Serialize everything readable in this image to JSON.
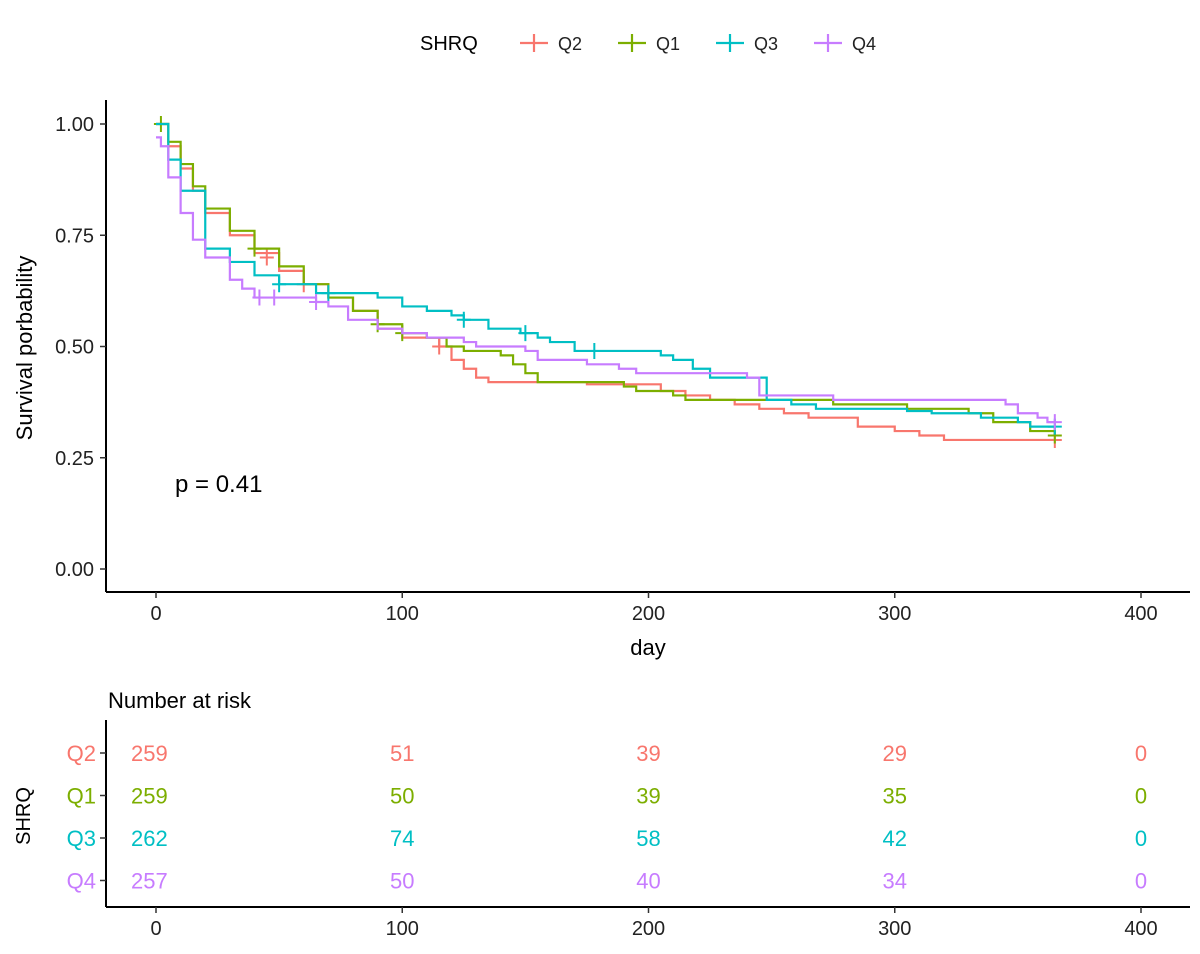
{
  "chart_data": {
    "type": "line",
    "subtype": "kaplan-meier",
    "xlabel": "day",
    "ylabel": "Survival porbability",
    "xlim": [
      0,
      400
    ],
    "ylim": [
      0,
      1
    ],
    "xticks": [
      "0",
      "100",
      "200",
      "300",
      "400"
    ],
    "yticks": [
      "0.00",
      "0.25",
      "0.50",
      "0.75",
      "1.00"
    ],
    "grid": false,
    "legend": {
      "title": "SHRQ",
      "placement": "top",
      "entries": [
        "Q2",
        "Q1",
        "Q3",
        "Q4"
      ]
    },
    "annotation": "p = 0.41",
    "series": [
      {
        "name": "Q2",
        "color": "#F8766D",
        "points": [
          [
            0,
            1.0
          ],
          [
            5,
            0.95
          ],
          [
            10,
            0.9
          ],
          [
            15,
            0.85
          ],
          [
            20,
            0.8
          ],
          [
            30,
            0.75
          ],
          [
            40,
            0.71
          ],
          [
            50,
            0.67
          ],
          [
            60,
            0.64
          ],
          [
            70,
            0.61
          ],
          [
            80,
            0.58
          ],
          [
            90,
            0.54
          ],
          [
            100,
            0.52
          ],
          [
            115,
            0.5
          ],
          [
            120,
            0.47
          ],
          [
            125,
            0.45
          ],
          [
            130,
            0.43
          ],
          [
            135,
            0.42
          ],
          [
            175,
            0.415
          ],
          [
            205,
            0.4
          ],
          [
            215,
            0.39
          ],
          [
            225,
            0.38
          ],
          [
            235,
            0.37
          ],
          [
            245,
            0.36
          ],
          [
            255,
            0.35
          ],
          [
            265,
            0.34
          ],
          [
            285,
            0.32
          ],
          [
            300,
            0.31
          ],
          [
            310,
            0.3
          ],
          [
            320,
            0.29
          ],
          [
            365,
            0.29
          ]
        ],
        "censored": [
          [
            45,
            0.7
          ],
          [
            60,
            0.64
          ],
          [
            115,
            0.5
          ],
          [
            365,
            0.29
          ]
        ]
      },
      {
        "name": "Q1",
        "color": "#7CAE00",
        "points": [
          [
            0,
            1.0
          ],
          [
            5,
            0.96
          ],
          [
            10,
            0.91
          ],
          [
            15,
            0.86
          ],
          [
            20,
            0.81
          ],
          [
            30,
            0.76
          ],
          [
            40,
            0.72
          ],
          [
            50,
            0.68
          ],
          [
            60,
            0.64
          ],
          [
            70,
            0.61
          ],
          [
            80,
            0.58
          ],
          [
            90,
            0.55
          ],
          [
            100,
            0.53
          ],
          [
            110,
            0.52
          ],
          [
            118,
            0.5
          ],
          [
            125,
            0.49
          ],
          [
            140,
            0.48
          ],
          [
            145,
            0.46
          ],
          [
            150,
            0.44
          ],
          [
            155,
            0.42
          ],
          [
            185,
            0.42
          ],
          [
            190,
            0.41
          ],
          [
            195,
            0.4
          ],
          [
            210,
            0.39
          ],
          [
            215,
            0.38
          ],
          [
            255,
            0.38
          ],
          [
            275,
            0.37
          ],
          [
            305,
            0.36
          ],
          [
            330,
            0.35
          ],
          [
            340,
            0.33
          ],
          [
            355,
            0.31
          ],
          [
            365,
            0.3
          ]
        ],
        "censored": [
          [
            2,
            1.0
          ],
          [
            40,
            0.72
          ],
          [
            90,
            0.55
          ],
          [
            100,
            0.53
          ],
          [
            365,
            0.3
          ]
        ]
      },
      {
        "name": "Q3",
        "color": "#00BFC4",
        "points": [
          [
            0,
            1.0
          ],
          [
            5,
            0.92
          ],
          [
            10,
            0.85
          ],
          [
            20,
            0.72
          ],
          [
            30,
            0.69
          ],
          [
            40,
            0.66
          ],
          [
            50,
            0.64
          ],
          [
            65,
            0.62
          ],
          [
            90,
            0.61
          ],
          [
            100,
            0.59
          ],
          [
            110,
            0.58
          ],
          [
            120,
            0.57
          ],
          [
            125,
            0.56
          ],
          [
            135,
            0.54
          ],
          [
            148,
            0.53
          ],
          [
            155,
            0.52
          ],
          [
            160,
            0.51
          ],
          [
            170,
            0.49
          ],
          [
            205,
            0.48
          ],
          [
            210,
            0.47
          ],
          [
            218,
            0.45
          ],
          [
            225,
            0.43
          ],
          [
            245,
            0.43
          ],
          [
            248,
            0.38
          ],
          [
            258,
            0.37
          ],
          [
            268,
            0.36
          ],
          [
            305,
            0.355
          ],
          [
            315,
            0.35
          ],
          [
            335,
            0.34
          ],
          [
            350,
            0.33
          ],
          [
            355,
            0.32
          ],
          [
            365,
            0.32
          ]
        ],
        "censored": [
          [
            50,
            0.64
          ],
          [
            70,
            0.62
          ],
          [
            125,
            0.56
          ],
          [
            150,
            0.53
          ],
          [
            178,
            0.49
          ],
          [
            365,
            0.32
          ]
        ]
      },
      {
        "name": "Q4",
        "color": "#C77CFF",
        "points": [
          [
            0,
            0.97
          ],
          [
            2,
            0.95
          ],
          [
            5,
            0.88
          ],
          [
            10,
            0.8
          ],
          [
            15,
            0.74
          ],
          [
            20,
            0.7
          ],
          [
            30,
            0.65
          ],
          [
            35,
            0.63
          ],
          [
            40,
            0.61
          ],
          [
            65,
            0.6
          ],
          [
            70,
            0.59
          ],
          [
            78,
            0.56
          ],
          [
            90,
            0.54
          ],
          [
            100,
            0.53
          ],
          [
            110,
            0.52
          ],
          [
            125,
            0.51
          ],
          [
            130,
            0.5
          ],
          [
            150,
            0.49
          ],
          [
            155,
            0.47
          ],
          [
            175,
            0.46
          ],
          [
            188,
            0.45
          ],
          [
            195,
            0.44
          ],
          [
            240,
            0.43
          ],
          [
            245,
            0.39
          ],
          [
            250,
            0.39
          ],
          [
            275,
            0.38
          ],
          [
            345,
            0.37
          ],
          [
            350,
            0.35
          ],
          [
            358,
            0.34
          ],
          [
            362,
            0.33
          ],
          [
            365,
            0.33
          ]
        ],
        "censored": [
          [
            42,
            0.61
          ],
          [
            48,
            0.61
          ],
          [
            65,
            0.6
          ],
          [
            365,
            0.33
          ]
        ]
      }
    ],
    "risk_table": {
      "title": "Number at risk",
      "ylabel": "SHRQ",
      "times": [
        "0",
        "100",
        "200",
        "300",
        "400"
      ],
      "rows": [
        {
          "name": "Q2",
          "color": "#F8766D",
          "values": [
            "259",
            "51",
            "39",
            "29",
            "0"
          ]
        },
        {
          "name": "Q1",
          "color": "#7CAE00",
          "values": [
            "259",
            "50",
            "39",
            "35",
            "0"
          ]
        },
        {
          "name": "Q3",
          "color": "#00BFC4",
          "values": [
            "262",
            "74",
            "58",
            "42",
            "0"
          ]
        },
        {
          "name": "Q4",
          "color": "#C77CFF",
          "values": [
            "257",
            "50",
            "40",
            "34",
            "0"
          ]
        }
      ]
    }
  }
}
